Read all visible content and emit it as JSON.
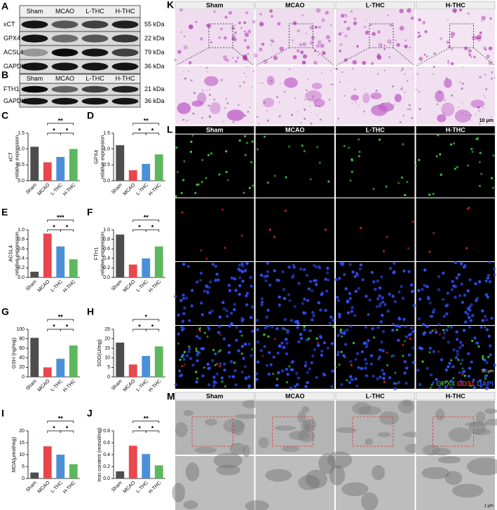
{
  "blots": [
    {
      "letter": "A",
      "columns": [
        "Sham",
        "MCAO",
        "L-THC",
        "H-THC"
      ],
      "rows": [
        {
          "label": "xCT",
          "size": "55 kDa"
        },
        {
          "label": "GPX4",
          "size": "22 kDa"
        },
        {
          "label": "ACSL4",
          "size": "79 kDa"
        },
        {
          "label": "GAPDH",
          "size": "36 kDa"
        }
      ]
    },
    {
      "letter": "B",
      "columns": [
        "Sham",
        "MCAO",
        "L-THC",
        "H-THC"
      ],
      "rows": [
        {
          "label": "FTH1",
          "size": "21 kDa"
        },
        {
          "label": "GAPDH",
          "size": "36 kDa"
        }
      ]
    }
  ],
  "chart_data": [
    {
      "type": "bar",
      "letter": "C",
      "ylabel": [
        "xCT",
        "relative expression"
      ],
      "categories": [
        "Sham",
        "MCAO",
        "L-THC",
        "H-THC"
      ],
      "values": [
        1.07,
        0.58,
        0.75,
        1.0
      ],
      "colors": [
        "#4d4d4d",
        "#e8474c",
        "#4a90d9",
        "#5cb85c"
      ],
      "ylim": [
        0,
        1.5
      ],
      "yticks": [
        {
          "value": 0,
          "label": "0.0"
        },
        0.5,
        {
          "value": 1,
          "label": "1.0"
        },
        1.5
      ],
      "annotations": [
        "**",
        "*",
        "*"
      ]
    },
    {
      "type": "bar",
      "letter": "D",
      "ylabel": [
        "GPX4",
        "relative expression"
      ],
      "categories": [
        "Sham",
        "MCAO",
        "L-THC",
        "H-THC"
      ],
      "values": [
        1.12,
        0.33,
        0.53,
        0.83
      ],
      "colors": [
        "#4d4d4d",
        "#e8474c",
        "#4a90d9",
        "#5cb85c"
      ],
      "ylim": [
        0,
        1.5
      ],
      "yticks": [
        {
          "value": 0,
          "label": "0.0"
        },
        0.5,
        {
          "value": 1,
          "label": "1.0"
        },
        1.5
      ],
      "annotations": [
        "**",
        "*",
        "*"
      ]
    },
    {
      "type": "bar",
      "letter": "E",
      "ylabel": [
        "ACSL4",
        "relative expression"
      ],
      "categories": [
        "Sham",
        "MCAO",
        "L-THC",
        "H-THC"
      ],
      "values": [
        0.12,
        0.92,
        0.65,
        0.38
      ],
      "colors": [
        "#4d4d4d",
        "#e8474c",
        "#4a90d9",
        "#5cb85c"
      ],
      "ylim": [
        0,
        1
      ],
      "yticks": [
        {
          "value": 0,
          "label": "0.0"
        },
        0.2,
        0.4,
        0.6,
        0.8,
        {
          "value": 1,
          "label": "1.0"
        }
      ],
      "annotations": [
        "***",
        "*",
        "*"
      ]
    },
    {
      "type": "bar",
      "letter": "F",
      "ylabel": [
        "FTH1",
        "relative expression"
      ],
      "categories": [
        "Sham",
        "MCAO",
        "L-THC",
        "H-THC"
      ],
      "values": [
        0.9,
        0.27,
        0.4,
        0.65
      ],
      "colors": [
        "#4d4d4d",
        "#e8474c",
        "#4a90d9",
        "#5cb85c"
      ],
      "ylim": [
        0,
        1
      ],
      "yticks": [
        {
          "value": 0,
          "label": "0.0"
        },
        0.2,
        0.4,
        0.6,
        0.8,
        {
          "value": 1,
          "label": "1.0"
        }
      ],
      "annotations": [
        "**",
        "*",
        "*"
      ]
    },
    {
      "type": "bar",
      "letter": "G",
      "ylabel": [
        "GSH  (ng/mg)"
      ],
      "categories": [
        "Sham",
        "MCAO",
        "L-THC",
        "H-THC"
      ],
      "values": [
        82,
        20,
        38,
        66
      ],
      "colors": [
        "#4d4d4d",
        "#e8474c",
        "#4a90d9",
        "#5cb85c"
      ],
      "ylim": [
        0,
        100
      ],
      "yticks": [
        0,
        20,
        40,
        60,
        80,
        100
      ],
      "annotations": [
        "**",
        "*",
        "*"
      ]
    },
    {
      "type": "bar",
      "letter": "H",
      "ylabel": [
        "SOD(U/mg)"
      ],
      "categories": [
        "Sham",
        "MCAO",
        "L-THC",
        "H-THC"
      ],
      "values": [
        18,
        6.5,
        11,
        16
      ],
      "colors": [
        "#4d4d4d",
        "#e8474c",
        "#4a90d9",
        "#5cb85c"
      ],
      "ylim": [
        0,
        25
      ],
      "yticks": [
        0,
        5,
        10,
        15,
        20,
        25
      ],
      "annotations": [
        "*",
        "*",
        "*"
      ]
    },
    {
      "type": "bar",
      "letter": "I",
      "ylabel": [
        "MDA(μmol/mg)"
      ],
      "categories": [
        "Sham",
        "MCAO",
        "L-THC",
        "H-THC"
      ],
      "values": [
        2.5,
        13.5,
        10,
        6
      ],
      "colors": [
        "#4d4d4d",
        "#e8474c",
        "#4a90d9",
        "#5cb85c"
      ],
      "ylim": [
        0,
        20
      ],
      "yticks": [
        0,
        5,
        10,
        15,
        20
      ],
      "annotations": [
        "**",
        "*",
        "*"
      ]
    },
    {
      "type": "bar",
      "letter": "J",
      "ylabel": [
        "Iron content  (mmol/mg)"
      ],
      "categories": [
        "Sham",
        "MCAO",
        "L-THC",
        "H-THC"
      ],
      "values": [
        0.12,
        0.55,
        0.41,
        0.22
      ],
      "colors": [
        "#4d4d4d",
        "#e8474c",
        "#4a90d9",
        "#5cb85c"
      ],
      "ylim": [
        0,
        0.8
      ],
      "yticks": [
        {
          "value": 0,
          "label": "0.0"
        },
        0.2,
        0.4,
        0.6,
        0.8
      ],
      "annotations": [
        "**",
        "*",
        "*"
      ]
    }
  ],
  "histology": {
    "letter": "K",
    "columns": [
      "Sham",
      "MCAO",
      "L-THC",
      "H-THC"
    ],
    "scale": "10 μm"
  },
  "immunofluorescence": {
    "letter": "L",
    "columns": [
      "Sham",
      "MCAO",
      "L-THC",
      "H-THC"
    ],
    "scale": "50 μm",
    "legend": [
      "GPX4",
      "CD31",
      "DAPI"
    ]
  },
  "electron": {
    "letter": "M",
    "columns": [
      "Sham",
      "MCAO",
      "L-THC",
      "H-THC"
    ],
    "scale": "1 μm"
  }
}
